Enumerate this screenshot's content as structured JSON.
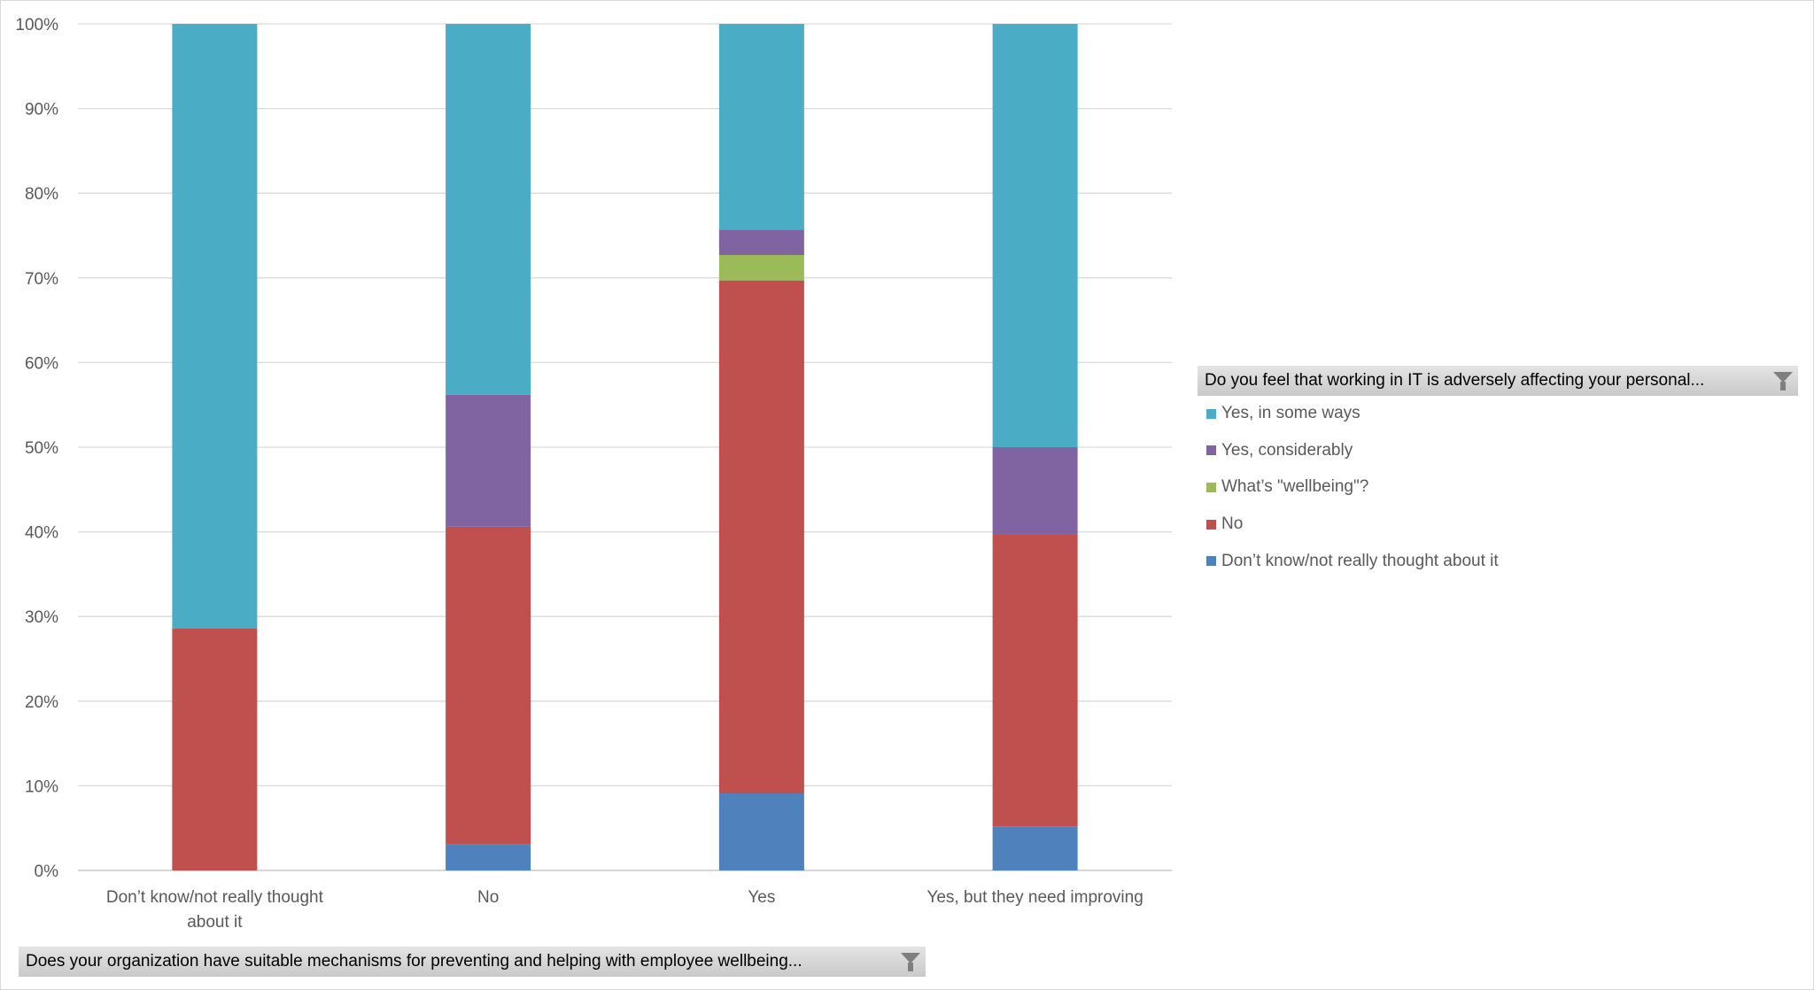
{
  "chart_data": {
    "type": "bar",
    "stacked": "percent",
    "categories": [
      "Don’t know/not really thought about it",
      "No",
      "Yes",
      "Yes, but they need improving"
    ],
    "category_lines": [
      [
        "Don’t know/not really thought",
        "about it"
      ],
      [
        "No"
      ],
      [
        "Yes"
      ],
      [
        "Yes, but they need improving"
      ]
    ],
    "series": [
      {
        "name": "Don’t know/not really thought about it",
        "color": "#4f81bd",
        "values": [
          0,
          3.1,
          9.1,
          5.2
        ]
      },
      {
        "name": "No",
        "color": "#c0504d",
        "values": [
          28.6,
          37.5,
          60.6,
          34.5
        ]
      },
      {
        "name": "What’s \"wellbeing\"?",
        "color": "#9bbb59",
        "values": [
          0,
          0,
          3.0,
          0
        ]
      },
      {
        "name": "Yes, considerably",
        "color": "#8064a2",
        "values": [
          0,
          15.6,
          3.0,
          10.3
        ]
      },
      {
        "name": "Yes, in some ways",
        "color": "#4bacc6",
        "values": [
          71.4,
          43.8,
          24.3,
          50.0
        ]
      }
    ],
    "ylim": [
      0,
      100
    ],
    "yticks": [
      "0%",
      "10%",
      "20%",
      "30%",
      "40%",
      "50%",
      "60%",
      "70%",
      "80%",
      "90%",
      "100%"
    ],
    "grid": true,
    "legend_placement": "right",
    "legend_title": "Do you feel that working in IT is adversely affecting your personal...",
    "legend_order": [
      "Yes, in some ways",
      "Yes, considerably",
      "What’s \"wellbeing\"?",
      "No",
      "Don’t know/not really thought about it"
    ],
    "axis_field_label": "Does your organization  have suitable mechanisms for preventing and helping with employee  wellbeing..."
  },
  "icons": {
    "filter": "funnel-icon"
  }
}
